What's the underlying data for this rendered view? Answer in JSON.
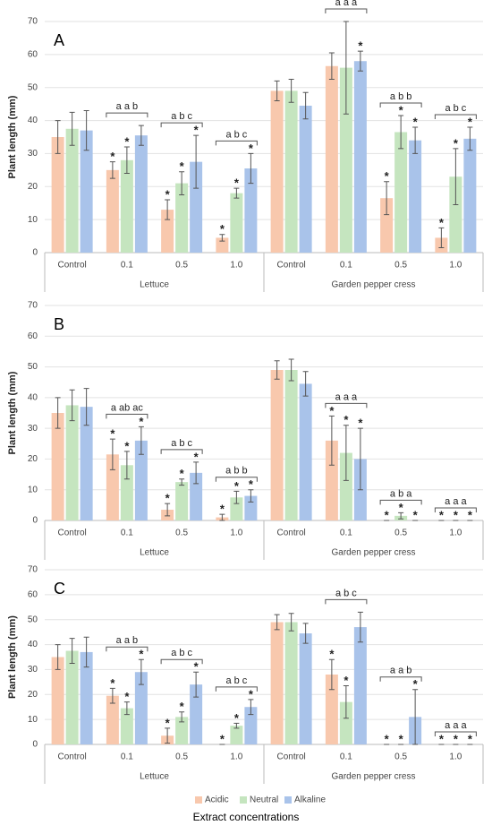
{
  "chart_data": [
    {
      "type": "bar",
      "panel": "A",
      "ylabel": "Plant length (mm)",
      "categories": [
        "Control",
        "0.1",
        "0.5",
        "1.0",
        "Control",
        "0.1",
        "0.5",
        "1.0"
      ],
      "groups": [
        "Lettuce",
        "Garden pepper cress"
      ],
      "ylim": [
        0,
        70
      ],
      "yticks": [
        0,
        10,
        20,
        30,
        40,
        50,
        60,
        70
      ],
      "grid": true,
      "letters": [
        null,
        "a a b",
        "a b c",
        "a b c",
        null,
        "a a a",
        "a b b",
        "a b c"
      ],
      "series": [
        {
          "name": "Acidic",
          "color": "#f8c8ad",
          "values": [
            35,
            25,
            13,
            4.5,
            49,
            56.5,
            16.5,
            4.5
          ],
          "errors": [
            5,
            2.5,
            3,
            1,
            3,
            4,
            5,
            3
          ],
          "markers": [
            null,
            "*",
            "*",
            "*",
            null,
            null,
            "*",
            "*"
          ]
        },
        {
          "name": "Neutral",
          "color": "#c5e5bf",
          "values": [
            37.5,
            28,
            21,
            18,
            49,
            56,
            36.5,
            23
          ],
          "errors": [
            5,
            4,
            3.5,
            1.5,
            3.5,
            14,
            5,
            8.5
          ],
          "markers": [
            null,
            "*",
            "*",
            "*",
            null,
            null,
            "*",
            "*"
          ]
        },
        {
          "name": "Alkaline",
          "color": "#a9c3ea",
          "values": [
            37,
            35.5,
            27.5,
            25.5,
            44.5,
            58,
            34,
            34.5
          ],
          "errors": [
            6,
            3,
            8,
            4.5,
            4,
            3,
            4,
            3.5
          ],
          "markers": [
            null,
            null,
            "*",
            "*",
            null,
            "*",
            "*",
            "*"
          ]
        }
      ]
    },
    {
      "type": "bar",
      "panel": "B",
      "ylabel": "Plant length (mm)",
      "categories": [
        "Control",
        "0.1",
        "0.5",
        "1.0",
        "Control",
        "0.1",
        "0.5",
        "1.0"
      ],
      "groups": [
        "Lettuce",
        "Garden pepper cress"
      ],
      "ylim": [
        0,
        70
      ],
      "yticks": [
        0,
        10,
        20,
        30,
        40,
        50,
        60,
        70
      ],
      "grid": true,
      "letters": [
        null,
        "a ab ac",
        "a b c",
        "a b b",
        null,
        "a a a",
        "a b a",
        "a a a"
      ],
      "series": [
        {
          "name": "Acidic",
          "color": "#f8c8ad",
          "values": [
            35,
            21.5,
            3.5,
            1,
            49,
            26,
            0,
            0
          ],
          "errors": [
            5,
            5,
            2,
            1,
            3,
            8,
            0,
            0
          ],
          "markers": [
            null,
            "*",
            "*",
            "*",
            null,
            "*",
            "*",
            "*"
          ]
        },
        {
          "name": "Neutral",
          "color": "#c5e5bf",
          "values": [
            37.5,
            18,
            12.5,
            7.5,
            49,
            22,
            1.5,
            0
          ],
          "errors": [
            5,
            4.5,
            1,
            2,
            3.5,
            9,
            1,
            0
          ],
          "markers": [
            null,
            "*",
            "*",
            "*",
            null,
            "*",
            "*",
            "*"
          ]
        },
        {
          "name": "Alkaline",
          "color": "#a9c3ea",
          "values": [
            37,
            26,
            15.5,
            8,
            44.5,
            20,
            0,
            0
          ],
          "errors": [
            6,
            4.5,
            3.5,
            2,
            4,
            10,
            0,
            0
          ],
          "markers": [
            null,
            "*",
            "*",
            "*",
            null,
            "*",
            "*",
            "*"
          ]
        }
      ]
    },
    {
      "type": "bar",
      "panel": "C",
      "ylabel": "Plant length (mm)",
      "xlabel": "Extract concentrations",
      "legend": "bottom",
      "categories": [
        "Control",
        "0.1",
        "0.5",
        "1.0",
        "Control",
        "0.1",
        "0.5",
        "1.0"
      ],
      "groups": [
        "Lettuce",
        "Garden pepper cress"
      ],
      "ylim": [
        0,
        70
      ],
      "yticks": [
        0,
        10,
        20,
        30,
        40,
        50,
        60,
        70
      ],
      "grid": true,
      "letters": [
        null,
        "a a b",
        "a b c",
        "a b c",
        null,
        "a b c",
        "a a b",
        "a a a"
      ],
      "series": [
        {
          "name": "Acidic",
          "color": "#f8c8ad",
          "values": [
            35,
            19.5,
            3.5,
            0,
            49,
            28,
            0,
            0
          ],
          "errors": [
            5,
            3,
            3,
            0,
            3,
            6,
            0,
            0
          ],
          "markers": [
            null,
            "*",
            "*",
            "*",
            null,
            "*",
            "*",
            "*"
          ]
        },
        {
          "name": "Neutral",
          "color": "#c5e5bf",
          "values": [
            37.5,
            14.5,
            11,
            7.5,
            49,
            17,
            0,
            0
          ],
          "errors": [
            5,
            2.5,
            2,
            1,
            3.5,
            6.5,
            0,
            0
          ],
          "markers": [
            null,
            "*",
            "*",
            "*",
            null,
            "*",
            "*",
            "*"
          ]
        },
        {
          "name": "Alkaline",
          "color": "#a9c3ea",
          "values": [
            37,
            29,
            24,
            15,
            44.5,
            47,
            11,
            0
          ],
          "errors": [
            6,
            5,
            5,
            3,
            4,
            6,
            11,
            0
          ],
          "markers": [
            null,
            "*",
            "*",
            "*",
            null,
            null,
            "*",
            "*"
          ]
        }
      ]
    }
  ]
}
